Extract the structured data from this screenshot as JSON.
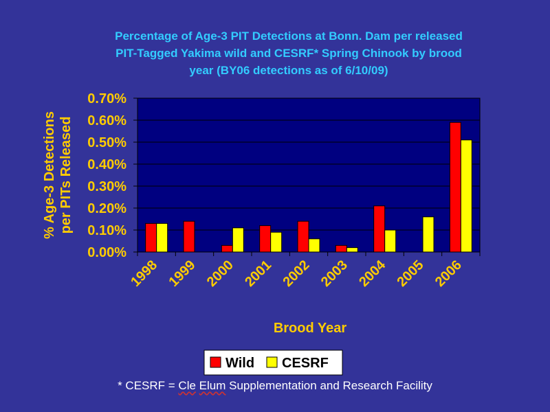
{
  "chart_data": {
    "type": "bar",
    "title_lines": [
      "Percentage of Age-3 PIT Detections at Bonn. Dam per released",
      "PIT-Tagged Yakima wild and CESRF* Spring Chinook by brood",
      "year (BY06 detections as of 6/10/09)"
    ],
    "xlabel": "Brood Year",
    "ylabel_lines": [
      "% Age-3 Detections",
      "per PITs Released"
    ],
    "categories": [
      "1998",
      "1999",
      "2000",
      "2001",
      "2002",
      "2003",
      "2004",
      "2005",
      "2006"
    ],
    "series": [
      {
        "name": "Wild",
        "color": "#ff0000",
        "values": [
          0.13,
          0.14,
          0.03,
          0.12,
          0.14,
          0.03,
          0.21,
          null,
          0.59
        ]
      },
      {
        "name": "CESRF",
        "color": "#ffff00",
        "values": [
          0.13,
          null,
          0.11,
          0.09,
          0.06,
          0.02,
          0.1,
          0.16,
          0.51
        ]
      }
    ],
    "yticks": [
      "0.00%",
      "0.10%",
      "0.20%",
      "0.30%",
      "0.40%",
      "0.50%",
      "0.60%",
      "0.70%"
    ],
    "ylim": [
      0,
      0.7
    ],
    "y_unit": "%",
    "grid": "horizontal",
    "legend_position": "bottom"
  },
  "colors": {
    "background": "#333399",
    "plot_background": "#000080",
    "title": "#33ccff",
    "axis_text": "#ffcc00"
  },
  "footnote": {
    "prefix": "* CESRF = ",
    "cle": "Cle",
    "space": " ",
    "elum": "Elum",
    "suffix": " Supplementation and Research Facility"
  }
}
